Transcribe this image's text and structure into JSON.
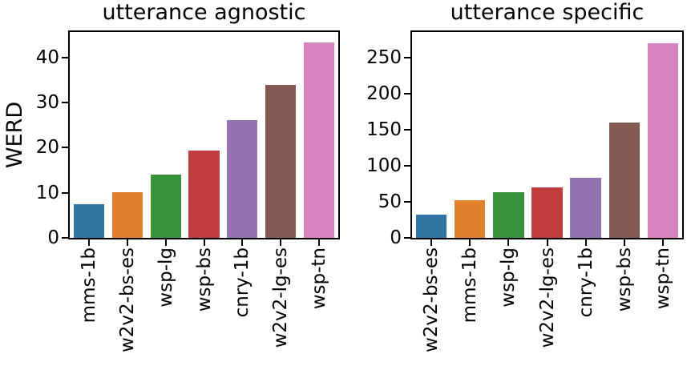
{
  "figure": {
    "background": "#ffffff",
    "text_color": "#000000",
    "axis_color": "#000000"
  },
  "bar_palette": [
    "#3274a1",
    "#e1812c",
    "#3a923a",
    "#c03d3e",
    "#9372b2",
    "#845b53",
    "#d684bd"
  ],
  "chart_data": [
    {
      "type": "bar",
      "title": "utterance agnostic",
      "xlabel": "",
      "ylabel": "WERD",
      "categories": [
        "mms-1b",
        "w2v2-bs-es",
        "wsp-lg",
        "wsp-bs",
        "cnry-1b",
        "w2v2-lg-es",
        "wsp-tn"
      ],
      "values": [
        7.4,
        10.1,
        14,
        19.4,
        26,
        33.9,
        43.3
      ],
      "ylim": [
        0,
        45.6
      ],
      "yticks": [
        0,
        10,
        20,
        30,
        40
      ],
      "grid": false,
      "legend": "none",
      "colors": [
        "#3274a1",
        "#e1812c",
        "#3a923a",
        "#c03d3e",
        "#9372b2",
        "#845b53",
        "#d684bd"
      ]
    },
    {
      "type": "bar",
      "title": "utterance specific",
      "xlabel": "",
      "ylabel": "",
      "categories": [
        "w2v2-bs-es",
        "mms-1b",
        "wsp-lg",
        "w2v2-lg-es",
        "cnry-1b",
        "wsp-bs",
        "wsp-tn"
      ],
      "values": [
        32,
        52,
        63,
        70,
        83,
        160,
        270
      ],
      "ylim": [
        0,
        286
      ],
      "yticks": [
        0,
        50,
        100,
        150,
        200,
        250
      ],
      "grid": false,
      "legend": "none",
      "colors": [
        "#3274a1",
        "#e1812c",
        "#3a923a",
        "#c03d3e",
        "#9372b2",
        "#845b53",
        "#d684bd"
      ]
    }
  ]
}
